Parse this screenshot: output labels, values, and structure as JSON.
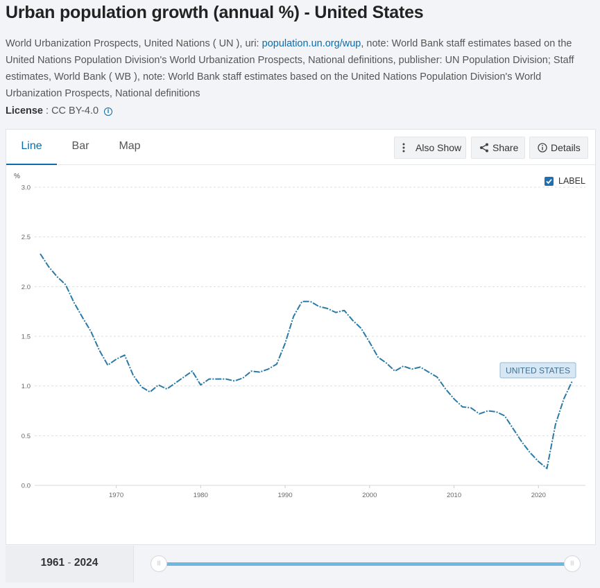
{
  "page": {
    "title": "Urban population growth (annual %) - United States",
    "source_prefix": "World Urbanization Prospects, United Nations ( UN ), uri: ",
    "source_link": "population.un.org/wup",
    "source_suffix": ", note: World Bank staff estimates based on the United Nations Population Division's World Urbanization Prospects, National definitions, publisher: UN Population Division; Staff estimates, World Bank ( WB ), note: World Bank staff estimates based on the United Nations Population Division's World Urbanization Prospects, National definitions",
    "license_label": "License",
    "license_value": ": CC BY-4.0"
  },
  "tabs": [
    {
      "label": "Line"
    },
    {
      "label": "Bar"
    },
    {
      "label": "Map"
    }
  ],
  "actions": {
    "also_show": "Also Show",
    "share": "Share",
    "details": "Details"
  },
  "label_toggle": "LABEL",
  "range": {
    "start": "1961",
    "sep": "-",
    "end": "2024"
  },
  "colors": {
    "accent": "#0b6ca8",
    "line": "#2a7aa7",
    "slider": "#6eb7de"
  },
  "chart_data": {
    "type": "line",
    "title": "Urban population growth (annual %) - United States",
    "ylabel": "%",
    "xlabel": "",
    "xlim": [
      1961,
      2024
    ],
    "ylim": [
      0,
      3
    ],
    "yticks": [
      0.0,
      0.5,
      1.0,
      1.5,
      2.0,
      2.5,
      3.0
    ],
    "xticks": [
      1970,
      1980,
      1990,
      2000,
      2010,
      2020
    ],
    "series": [
      {
        "name": "UNITED STATES",
        "x": [
          1961,
          1962,
          1963,
          1964,
          1965,
          1966,
          1967,
          1968,
          1969,
          1970,
          1971,
          1972,
          1973,
          1974,
          1975,
          1976,
          1977,
          1978,
          1979,
          1980,
          1981,
          1982,
          1983,
          1984,
          1985,
          1986,
          1987,
          1988,
          1989,
          1990,
          1991,
          1992,
          1993,
          1994,
          1995,
          1996,
          1997,
          1998,
          1999,
          2000,
          2001,
          2002,
          2003,
          2004,
          2005,
          2006,
          2007,
          2008,
          2009,
          2010,
          2011,
          2012,
          2013,
          2014,
          2015,
          2016,
          2017,
          2018,
          2019,
          2020,
          2021,
          2022,
          2023,
          2024
        ],
        "values": [
          2.33,
          2.2,
          2.1,
          2.02,
          1.84,
          1.69,
          1.55,
          1.36,
          1.21,
          1.27,
          1.31,
          1.11,
          0.99,
          0.94,
          1.01,
          0.97,
          1.03,
          1.09,
          1.15,
          1.01,
          1.07,
          1.07,
          1.07,
          1.05,
          1.08,
          1.15,
          1.14,
          1.17,
          1.22,
          1.43,
          1.7,
          1.85,
          1.85,
          1.8,
          1.78,
          1.74,
          1.76,
          1.66,
          1.58,
          1.44,
          1.29,
          1.23,
          1.15,
          1.2,
          1.17,
          1.19,
          1.14,
          1.09,
          0.97,
          0.87,
          0.79,
          0.78,
          0.72,
          0.75,
          0.74,
          0.7,
          0.57,
          0.44,
          0.33,
          0.24,
          0.17,
          0.61,
          0.87,
          1.05
        ]
      }
    ]
  }
}
